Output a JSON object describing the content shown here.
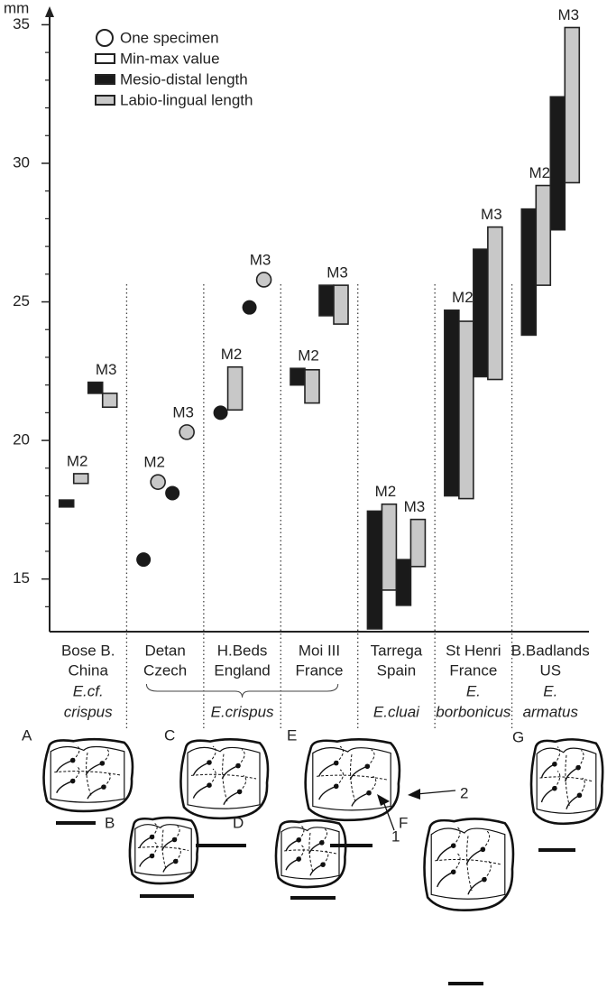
{
  "chart_data": {
    "type": "range",
    "y_axis_label": "mm",
    "ylim": [
      13.1,
      35.6
    ],
    "yticks": [
      15,
      20,
      25,
      30,
      35
    ],
    "yminorticks": [
      14,
      16,
      17,
      18,
      19,
      21,
      22,
      23,
      24,
      26,
      27,
      28,
      29,
      31,
      32,
      33,
      34
    ],
    "legend": {
      "specimen": "One specimen",
      "range": "Min-max value",
      "md": "Mesio-distal length",
      "ll": "Labio-lingual length"
    },
    "colors": {
      "md": "#1a1a1a",
      "ll": "#c8c8c8"
    },
    "taxa": [
      {
        "name": [
          "E.cf.",
          "crispus"
        ],
        "localities": [
          {
            "name": [
              "Bose B.",
              "China"
            ],
            "teeth": [
              {
                "tooth": "M2",
                "md": [
                  17.6,
                  17.85
                ],
                "ll": [
                  18.45,
                  18.8
                ]
              },
              {
                "tooth": "M3",
                "md": [
                  21.7,
                  22.1
                ],
                "ll": [
                  21.2,
                  21.7
                ]
              }
            ]
          }
        ]
      },
      {
        "name": [
          "E.crispus"
        ],
        "localities": [
          {
            "name": [
              "Detan",
              "Czech"
            ],
            "teeth": [
              {
                "tooth": "M2",
                "md": 15.7,
                "ll": 18.5
              },
              {
                "tooth": "M3",
                "md": 18.1,
                "ll": 20.3
              }
            ]
          },
          {
            "name": [
              "H.Beds",
              "England"
            ],
            "teeth": [
              {
                "tooth": "M2",
                "md": 21.0,
                "ll": [
                  21.1,
                  22.65
                ]
              },
              {
                "tooth": "M3",
                "md": 24.8,
                "ll": 25.8
              }
            ]
          },
          {
            "name": [
              "Moi III",
              "France"
            ],
            "teeth": [
              {
                "tooth": "M2",
                "md": [
                  22.0,
                  22.6
                ],
                "ll": [
                  21.35,
                  22.55
                ]
              },
              {
                "tooth": "M3",
                "md": [
                  24.5,
                  25.6
                ],
                "ll": [
                  24.2,
                  25.6
                ]
              }
            ]
          }
        ]
      },
      {
        "name": [
          "E.cluai"
        ],
        "localities": [
          {
            "name": [
              "Tarrega",
              "Spain"
            ],
            "teeth": [
              {
                "tooth": "M2",
                "md": [
                  13.2,
                  17.45
                ],
                "ll": [
                  14.6,
                  17.7
                ]
              },
              {
                "tooth": "M3",
                "md": [
                  14.05,
                  15.7
                ],
                "ll": [
                  15.45,
                  17.15
                ]
              }
            ]
          }
        ]
      },
      {
        "name": [
          "E.",
          "borbonicus"
        ],
        "localities": [
          {
            "name": [
              "St Henri",
              "France"
            ],
            "teeth": [
              {
                "tooth": "M2",
                "md": [
                  18.0,
                  24.7
                ],
                "ll": [
                  17.9,
                  24.3
                ]
              },
              {
                "tooth": "M3",
                "md": [
                  22.3,
                  26.9
                ],
                "ll": [
                  22.2,
                  27.7
                ]
              }
            ]
          }
        ]
      },
      {
        "name": [
          "E.",
          "armatus"
        ],
        "localities": [
          {
            "name": [
              "B.Badlands",
              "US"
            ],
            "teeth": [
              {
                "tooth": "M2",
                "md": [
                  23.8,
                  28.35
                ],
                "ll": [
                  25.6,
                  29.2
                ]
              },
              {
                "tooth": "M3",
                "md": [
                  27.6,
                  32.4
                ],
                "ll": [
                  29.3,
                  34.9
                ]
              }
            ]
          }
        ]
      }
    ]
  },
  "figure_panels": {
    "labels": [
      "A",
      "B",
      "C",
      "D",
      "E",
      "F",
      "G"
    ],
    "arrow_labels": [
      "1",
      "2"
    ]
  }
}
